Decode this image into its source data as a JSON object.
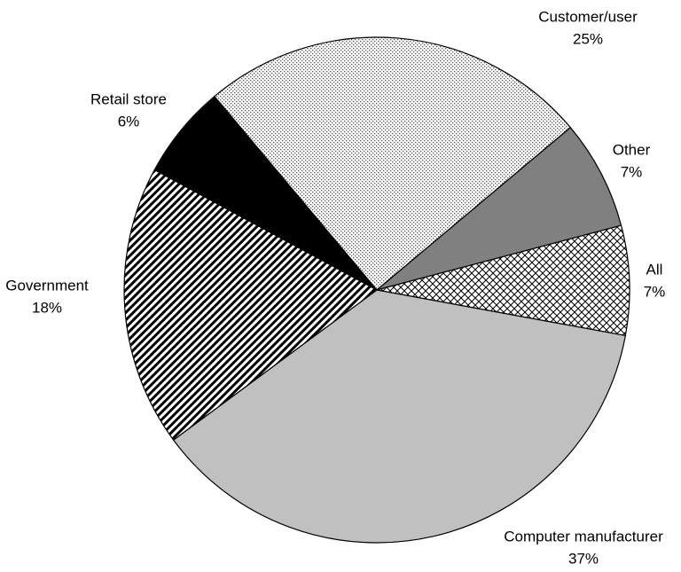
{
  "chart_data": {
    "type": "pie",
    "categories": [
      "Customer/user",
      "Other",
      "All",
      "Computer manufacturer",
      "Government",
      "Retail store"
    ],
    "values": [
      25,
      7,
      7,
      37,
      18,
      6
    ],
    "value_labels": [
      "25%",
      "7%",
      "7%",
      "37%",
      "18%",
      "6%"
    ],
    "colors": [
      "#ffffff",
      "#808080",
      "#ffffff",
      "#c0c0c0",
      "#ffffff",
      "#000000"
    ]
  }
}
